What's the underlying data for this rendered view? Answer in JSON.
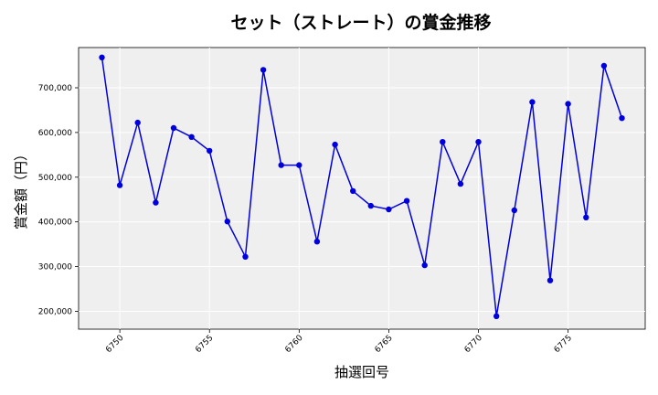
{
  "chart_data": {
    "type": "line",
    "title": "セット（ストレート）の賞金推移",
    "xlabel": "抽選回号",
    "ylabel": "賞金額（円）",
    "xlim": [
      6747.7,
      6779.3
    ],
    "ylim": [
      160000,
      790000
    ],
    "x_ticks": [
      6750,
      6755,
      6760,
      6765,
      6770,
      6775
    ],
    "y_ticks": [
      200000,
      300000,
      400000,
      500000,
      600000,
      700000
    ],
    "y_tick_labels": [
      "200,000",
      "300,000",
      "400,000",
      "500,000",
      "600,000",
      "700,000"
    ],
    "grid": true,
    "series": [
      {
        "color": "#0000dd",
        "x": [
          6749,
          6750,
          6751,
          6752,
          6753,
          6754,
          6755,
          6756,
          6757,
          6758,
          6759,
          6760,
          6761,
          6762,
          6763,
          6764,
          6765,
          6766,
          6767,
          6768,
          6769,
          6770,
          6771,
          6772,
          6773,
          6774,
          6775,
          6776,
          6777,
          6778
        ],
        "y": [
          768000,
          482000,
          622000,
          443000,
          610000,
          590000,
          559000,
          401000,
          322000,
          740000,
          527000,
          527000,
          356000,
          573000,
          469000,
          436000,
          428000,
          447000,
          303000,
          579000,
          485000,
          579000,
          189000,
          426000,
          668000,
          269000,
          664000,
          410000,
          749000,
          632000
        ]
      }
    ]
  }
}
